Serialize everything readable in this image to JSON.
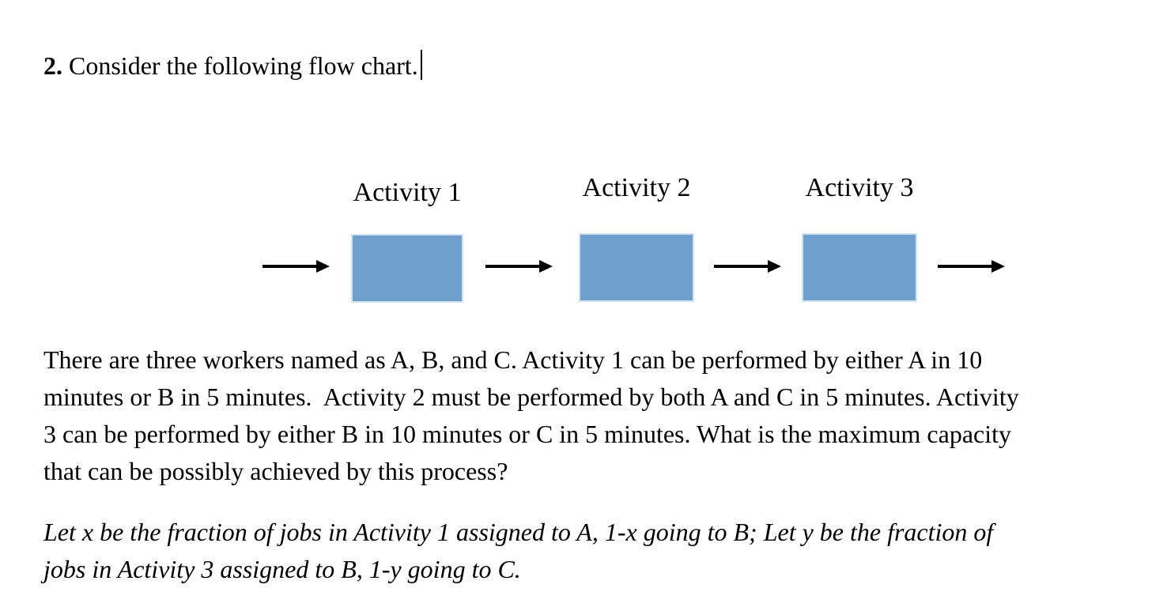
{
  "heading": {
    "number": "2.",
    "text": " Consider the following flow chart."
  },
  "diagram": {
    "box_fill": "#6FA0CD",
    "box_border": "#CFE2F2",
    "arrow_color": "#000000",
    "boxes": [
      {
        "label": "Activity 1"
      },
      {
        "label": "Activity 2"
      },
      {
        "label": "Activity 3"
      }
    ]
  },
  "paragraph_main": {
    "lines": [
      "There are three workers named as A, B, and C. Activity 1 can be performed by either A in 10",
      "minutes or B in 5 minutes.  Activity 2 must be performed by both A and C in 5 minutes. Activity",
      "3 can be performed by either B in 10 minutes or C in 5 minutes. What is the maximum capacity",
      "that can be possibly achieved by this process?"
    ]
  },
  "paragraph_italic": {
    "lines": [
      "Let x be the fraction of jobs in Activity 1 assigned to A, 1-x going to B; Let y be the fraction of",
      "jobs in Activity 3 assigned to B, 1-y going to C."
    ]
  }
}
